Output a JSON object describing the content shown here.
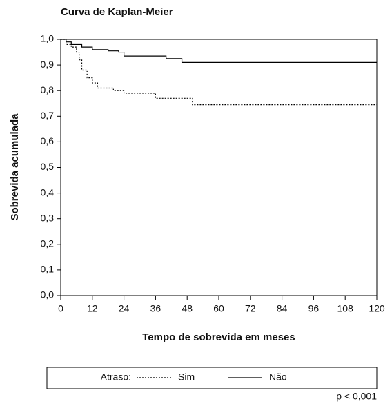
{
  "chart_data": {
    "type": "step",
    "title": "Curva de Kaplan-Meier",
    "x_label": "Tempo de sobrevida em meses",
    "y_label": "Sobrevida acumulada",
    "legend_title": "Atraso:",
    "annotation": "p < 0,001",
    "xlim": [
      0,
      120
    ],
    "xticks": [
      0,
      12,
      24,
      36,
      48,
      60,
      72,
      84,
      96,
      108,
      120
    ],
    "ylim": [
      0,
      1
    ],
    "yticks": [
      {
        "value": 0,
        "label": "0,0"
      },
      {
        "value": 0.1,
        "label": "0,1"
      },
      {
        "value": 0.2,
        "label": "0,2"
      },
      {
        "value": 0.3,
        "label": "0,3"
      },
      {
        "value": 0.4,
        "label": "0,4"
      },
      {
        "value": 0.5,
        "label": "0,5"
      },
      {
        "value": 0.6,
        "label": "0,6"
      },
      {
        "value": 0.7,
        "label": "0,7"
      },
      {
        "value": 0.8,
        "label": "0,8"
      },
      {
        "value": 0.9,
        "label": "0,9"
      },
      {
        "value": 1,
        "label": "1,0"
      }
    ],
    "series": [
      {
        "name": "Sim",
        "color": "#000000",
        "dash": "dotted",
        "x": [
          0,
          2,
          4,
          6,
          7,
          8,
          10,
          12,
          14,
          20,
          24,
          36,
          50,
          120
        ],
        "values": [
          1,
          0.98,
          0.97,
          0.95,
          0.92,
          0.88,
          0.85,
          0.83,
          0.81,
          0.8,
          0.79,
          0.77,
          0.745,
          0.745
        ]
      },
      {
        "name": "Não",
        "color": "#000000",
        "dash": "solid",
        "x": [
          0,
          2,
          4,
          8,
          12,
          18,
          22,
          24,
          40,
          46,
          120
        ],
        "values": [
          1,
          0.99,
          0.98,
          0.97,
          0.96,
          0.955,
          0.95,
          0.935,
          0.925,
          0.91,
          0.91
        ]
      }
    ]
  }
}
